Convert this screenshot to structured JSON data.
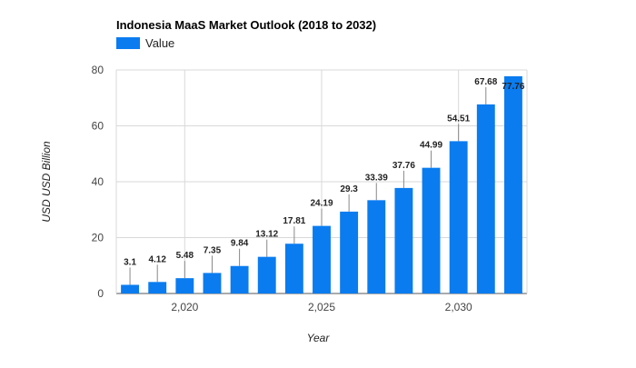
{
  "chart_data": {
    "type": "bar",
    "title": "Indonesia MaaS Market Outlook (2018 to 2032)",
    "xlabel": "Year",
    "ylabel": "USD USD Billion",
    "x": [
      2018,
      2019,
      2020,
      2021,
      2022,
      2023,
      2024,
      2025,
      2026,
      2027,
      2028,
      2029,
      2030,
      2031,
      2032
    ],
    "series": [
      {
        "name": "Value",
        "values": [
          3.1,
          4.12,
          5.48,
          7.35,
          9.84,
          13.12,
          17.81,
          24.19,
          29.3,
          33.39,
          37.76,
          44.99,
          54.51,
          67.68,
          77.76
        ]
      }
    ],
    "data_labels": [
      "3.1",
      "4.12",
      "5.48",
      "7.35",
      "9.84",
      "13.12",
      "17.81",
      "24.19",
      "29.3",
      "33.39",
      "37.76",
      "44.99",
      "54.51",
      "67.68",
      "77.76"
    ],
    "ylim": [
      0,
      80
    ],
    "y_ticks": [
      0,
      20,
      40,
      60,
      80
    ],
    "y_tick_labels": [
      "0",
      "20",
      "40",
      "60",
      "80"
    ],
    "x_ticks": [
      2020,
      2025,
      2030
    ],
    "x_tick_labels": [
      "2,020",
      "2,025",
      "2,030"
    ],
    "grid": true,
    "legend_position": "top-left",
    "colors": {
      "bar": "#0a7cf0",
      "grid": "#d9d9d9",
      "axis": "#555555"
    }
  }
}
